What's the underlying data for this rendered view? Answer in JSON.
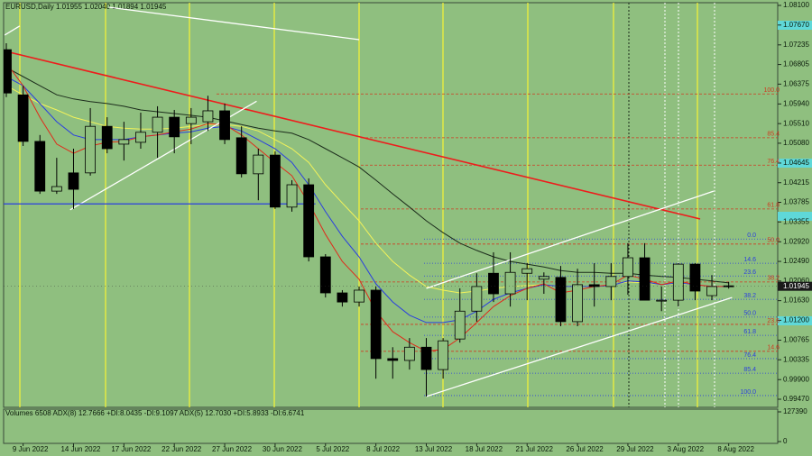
{
  "chart_data": {
    "type": "candlestick",
    "title": "EURUSD,Daily 1.01955 1.02040 1.01894 1.01945",
    "categories": [
      null,
      "9 Jun 2022",
      null,
      null,
      "14 Jun 2022",
      null,
      null,
      "17 Jun 2022",
      null,
      null,
      "22 Jun 2022",
      null,
      null,
      "27 Jun 2022",
      null,
      null,
      "30 Jun 2022",
      null,
      null,
      "5 Jul 2022",
      null,
      null,
      "8 Jul 2022",
      null,
      null,
      "13 Jul 2022",
      null,
      null,
      "18 Jul 2022",
      null,
      null,
      "21 Jul 2022",
      null,
      null,
      "26 Jul 2022",
      null,
      null,
      "29 Jul 2022",
      null,
      null,
      "3 Aug 2022",
      null,
      null,
      "8 Aug 2022"
    ],
    "open": [
      1.0713,
      1.0614,
      1.0512,
      1.0403,
      1.0443,
      1.0443,
      1.0545,
      1.0506,
      1.051,
      1.0532,
      1.0565,
      1.0551,
      1.0555,
      1.0579,
      1.052,
      1.0441,
      1.0482,
      1.0368,
      1.0417,
      1.0259,
      1.018,
      1.016,
      1.0186,
      1.0036,
      1.0032,
      1.0061,
      1.0012,
      1.0079,
      1.014,
      1.0223,
      1.0178,
      1.0223,
      1.021,
      1.0214,
      1.0117,
      1.0198,
      1.0194,
      1.0216,
      1.0257,
      1.0164,
      1.0164,
      1.0243,
      1.0174,
      1.01955
    ],
    "high": [
      1.0727,
      1.0634,
      1.0526,
      1.0476,
      1.0496,
      1.0585,
      1.0565,
      1.0555,
      1.0575,
      1.0589,
      1.0581,
      1.0585,
      1.0612,
      1.0595,
      1.0545,
      1.0496,
      1.049,
      1.0427,
      1.0431,
      1.0265,
      1.0186,
      1.0194,
      1.0194,
      1.0061,
      1.0081,
      1.0081,
      1.0081,
      1.019,
      1.0223,
      1.0269,
      1.0269,
      1.0245,
      1.0225,
      1.0239,
      1.0233,
      1.0245,
      1.0245,
      1.0289,
      1.0289,
      1.0194,
      1.0245,
      1.0245,
      1.0219,
      1.0204
    ],
    "low": [
      1.0609,
      1.0502,
      1.0397,
      1.0397,
      1.0364,
      1.0437,
      1.0486,
      1.047,
      1.0496,
      1.0476,
      1.0486,
      1.0506,
      1.0535,
      1.0506,
      1.0433,
      1.0383,
      1.0364,
      1.0358,
      1.0249,
      1.017,
      1.015,
      1.015,
      0.9992,
      0.9992,
      1.0012,
      0.9953,
      0.9992,
      1.0071,
      1.0117,
      1.016,
      1.015,
      1.0164,
      1.0178,
      1.0107,
      1.0107,
      1.015,
      1.0164,
      1.0176,
      1.0164,
      1.014,
      1.015,
      1.0164,
      1.0164,
      1.01894
    ],
    "close": [
      1.0618,
      1.0512,
      1.0403,
      1.0413,
      1.0407,
      1.0545,
      1.0496,
      1.0516,
      1.0532,
      1.0565,
      1.0522,
      1.0565,
      1.0579,
      1.0516,
      1.0441,
      1.0482,
      1.0368,
      1.0417,
      1.0259,
      1.018,
      1.016,
      1.0186,
      1.0036,
      1.0032,
      1.0061,
      1.0012,
      1.0075,
      1.014,
      1.0194,
      1.0178,
      1.0225,
      1.0233,
      1.0216,
      1.0117,
      1.0198,
      1.0194,
      1.0216,
      1.0257,
      1.0164,
      1.0164,
      1.0243,
      1.0184,
      1.0194,
      1.01945
    ],
    "up_color": "#8fbf7f",
    "down_color": "#000000",
    "ylim": [
      0.9947,
      1.081
    ],
    "yticks": [
      {
        "value": 1.081,
        "label": "1.08100"
      },
      {
        "value": 1.0767,
        "label": "1.07670"
      },
      {
        "value": 1.07235,
        "label": "1.07235"
      },
      {
        "value": 1.06805,
        "label": "1.06805"
      },
      {
        "value": 1.06375,
        "label": "1.06375"
      },
      {
        "value": 1.0594,
        "label": "1.05940"
      },
      {
        "value": 1.0551,
        "label": "1.05510"
      },
      {
        "value": 1.0508,
        "label": "1.05080"
      },
      {
        "value": 1.04645,
        "label": "1.04645"
      },
      {
        "value": 1.04215,
        "label": "1.04215"
      },
      {
        "value": 1.03785,
        "label": "1.03785"
      },
      {
        "value": 1.03355,
        "label": "1.03355"
      },
      {
        "value": 1.0292,
        "label": "1.02920"
      },
      {
        "value": 1.0249,
        "label": "1.02490"
      },
      {
        "value": 1.0206,
        "label": "1.02060"
      },
      {
        "value": 1.0163,
        "label": "1.01630"
      },
      {
        "value": 1.012,
        "label": "1.01200"
      },
      {
        "value": 1.00765,
        "label": "1.00765"
      },
      {
        "value": 1.00335,
        "label": "1.00335"
      },
      {
        "value": 0.999,
        "label": "0.99900"
      },
      {
        "value": 0.9947,
        "label": "0.99470"
      }
    ],
    "last_price": {
      "value": 1.01945,
      "label": "1.01945"
    },
    "overlays": [
      {
        "color": "#1c2c1c",
        "values": [
          1.0674,
          1.0654,
          1.0634,
          1.0614,
          1.0605,
          1.0599,
          1.0595,
          1.0589,
          1.0581,
          1.0577,
          1.0573,
          1.0569,
          1.0565,
          1.0557,
          1.0549,
          1.0541,
          1.0535,
          1.053,
          1.0516,
          1.0496,
          1.0476,
          1.0456,
          1.0427,
          1.0397,
          1.0368,
          1.0338,
          1.0312,
          1.0289,
          1.0273,
          1.0259,
          1.0249,
          1.0243,
          1.0237,
          1.0229,
          1.0225,
          1.0225,
          1.0223,
          1.0223,
          1.0219,
          1.0216,
          1.0214,
          1.021,
          1.0206,
          1.0202
        ]
      },
      {
        "color": "#f2f25a",
        "values": [
          1.0634,
          1.0614,
          1.0595,
          1.0581,
          1.0565,
          1.0555,
          1.0545,
          1.0541,
          1.0539,
          1.0539,
          1.0541,
          1.0545,
          1.0549,
          1.0549,
          1.0545,
          1.0535,
          1.0516,
          1.0496,
          1.0466,
          1.0417,
          1.0377,
          1.0338,
          1.0289,
          1.0249,
          1.0219,
          1.0194,
          1.0186,
          1.018,
          1.0184,
          1.019,
          1.0194,
          1.0196,
          1.0198,
          1.0194,
          1.0194,
          1.0194,
          1.0198,
          1.0204,
          1.0202,
          1.0198,
          1.02,
          1.0198,
          1.0194,
          1.0194
        ]
      },
      {
        "color": "#2a3ee0",
        "values": [
          1.0654,
          1.0634,
          1.0595,
          1.0555,
          1.0526,
          1.0516,
          1.0516,
          1.0516,
          1.0522,
          1.0526,
          1.053,
          1.0533,
          1.0541,
          1.0545,
          1.0535,
          1.0516,
          1.0496,
          1.0466,
          1.0417,
          1.0358,
          1.0304,
          1.0259,
          1.02,
          1.016,
          1.0131,
          1.0115,
          1.0115,
          1.0121,
          1.014,
          1.0166,
          1.018,
          1.019,
          1.0198,
          1.0194,
          1.0194,
          1.0194,
          1.0196,
          1.0206,
          1.0204,
          1.0198,
          1.0202,
          1.0198,
          1.0194,
          1.0194
        ]
      },
      {
        "color": "#e02a1a",
        "values": [
          1.0684,
          1.0634,
          1.0565,
          1.0506,
          1.0486,
          1.0502,
          1.051,
          1.0512,
          1.0522,
          1.0526,
          1.0533,
          1.0539,
          1.0551,
          1.0549,
          1.0526,
          1.0496,
          1.0466,
          1.0437,
          1.0377,
          1.0308,
          1.0249,
          1.021,
          1.014,
          1.0095,
          1.0071,
          1.0052,
          1.0056,
          1.0081,
          1.0115,
          1.015,
          1.0174,
          1.019,
          1.02,
          1.018,
          1.0186,
          1.0194,
          1.0198,
          1.0219,
          1.021,
          1.0198,
          1.0206,
          1.0198,
          1.0194,
          1.0194
        ]
      }
    ],
    "trendlines": [
      {
        "color": "#ee1c1c",
        "x": [
          0,
          41.3
        ],
        "values": [
          1.0709,
          1.0342
        ]
      },
      {
        "color": "#ffffff",
        "x": [
          25,
          42.1
        ],
        "values": [
          1.019,
          1.0403
        ]
      },
      {
        "color": "#ffffff",
        "x": [
          25,
          43.2
        ],
        "values": [
          0.9953,
          1.017
        ]
      },
      {
        "color": "#ffffff",
        "x": [
          3.8,
          14.9
        ],
        "values": [
          1.0362,
          1.06
        ]
      },
      {
        "color": "#ffffff",
        "x": [
          6.1,
          21
        ],
        "values": [
          1.0806,
          1.0735
        ]
      },
      {
        "color": "#ffffff",
        "x": [
          -0.1,
          0.8
        ],
        "values": [
          1.0745,
          1.0765
        ]
      },
      {
        "color": "#2a3ee0",
        "x": [
          -0.4,
          18.4
        ],
        "values": [
          1.0375,
          1.0375
        ]
      }
    ],
    "fib_levels": [
      {
        "label": "100.0",
        "value": 1.0616,
        "color": "#d03a20"
      },
      {
        "label": "85.4",
        "value": 1.052,
        "color": "#d03a20"
      },
      {
        "label": "76.4",
        "value": 1.046,
        "color": "#d03a20"
      },
      {
        "label": "61.8",
        "value": 1.0364,
        "color": "#d03a20"
      },
      {
        "label": "50.0",
        "value": 1.0287,
        "color": "#d03a20"
      },
      {
        "label": "38.2",
        "value": 1.0204,
        "color": "#d03a20"
      },
      {
        "label": "23.6",
        "value": 1.0111,
        "color": "#d03a20"
      },
      {
        "label": "14.6",
        "value": 1.0052,
        "color": "#d03a20"
      },
      {
        "label": "0.0",
        "value": 1.0298,
        "color": "#2a3ee0"
      },
      {
        "label": "14.6",
        "value": 1.0245,
        "color": "#2a3ee0"
      },
      {
        "label": "23.6",
        "value": 1.0217,
        "color": "#2a3ee0"
      },
      {
        "label": "38.2",
        "value": 1.0166,
        "color": "#2a3ee0"
      },
      {
        "label": "50.0",
        "value": 1.0127,
        "color": "#2a3ee0"
      },
      {
        "label": "61.8",
        "value": 1.0087,
        "color": "#2a3ee0"
      },
      {
        "label": "76.4",
        "value": 1.0036,
        "color": "#2a3ee0"
      },
      {
        "label": "85.4",
        "value": 1.0004,
        "color": "#2a3ee0"
      },
      {
        "label": "100.0",
        "value": 0.9955,
        "color": "#2a3ee0"
      }
    ],
    "volume_pane": {
      "label": "Volumes 6508 ADX(8) 12.7666 +DI:8.0435 -DI:9.1097 ADX(5) 12.7030 +DI:5.8933 -DI:6.6741",
      "ylim": [
        0,
        127390
      ],
      "yticks": [
        0,
        127390
      ]
    }
  }
}
